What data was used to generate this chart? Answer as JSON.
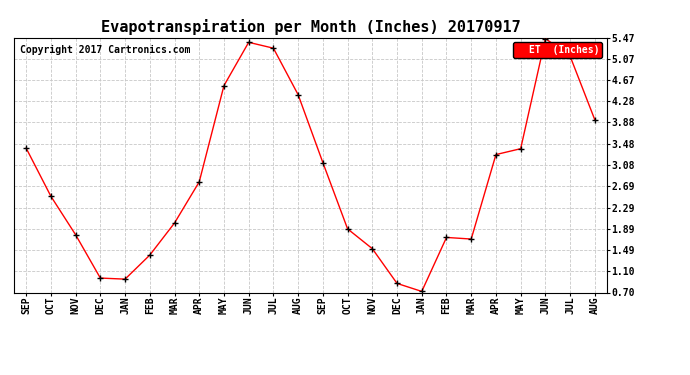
{
  "title": "Evapotranspiration per Month (Inches) 20170917",
  "copyright": "Copyright 2017 Cartronics.com",
  "legend_label": "ET  (Inches)",
  "months": [
    "SEP",
    "OCT",
    "NOV",
    "DEC",
    "JAN",
    "FEB",
    "MAR",
    "APR",
    "MAY",
    "JUN",
    "JUL",
    "AUG",
    "SEP",
    "OCT",
    "NOV",
    "DEC",
    "JAN",
    "FEB",
    "MAR",
    "APR",
    "MAY",
    "JUN",
    "JUL",
    "AUG"
  ],
  "values": [
    3.4,
    2.5,
    1.78,
    0.97,
    0.95,
    1.4,
    2.0,
    2.77,
    4.57,
    5.38,
    5.27,
    4.4,
    3.13,
    1.89,
    1.52,
    0.87,
    0.72,
    1.73,
    1.7,
    3.28,
    3.39,
    5.45,
    5.12,
    3.93
  ],
  "ylim": [
    0.7,
    5.47
  ],
  "yticks": [
    0.7,
    1.1,
    1.49,
    1.89,
    2.29,
    2.69,
    3.08,
    3.48,
    3.88,
    4.28,
    4.67,
    5.07,
    5.47
  ],
  "line_color": "red",
  "marker_color": "black",
  "background_color": "white",
  "grid_color": "#c8c8c8",
  "title_fontsize": 11,
  "copyright_fontsize": 7,
  "tick_fontsize": 7,
  "legend_bg": "red",
  "legend_text_color": "white"
}
